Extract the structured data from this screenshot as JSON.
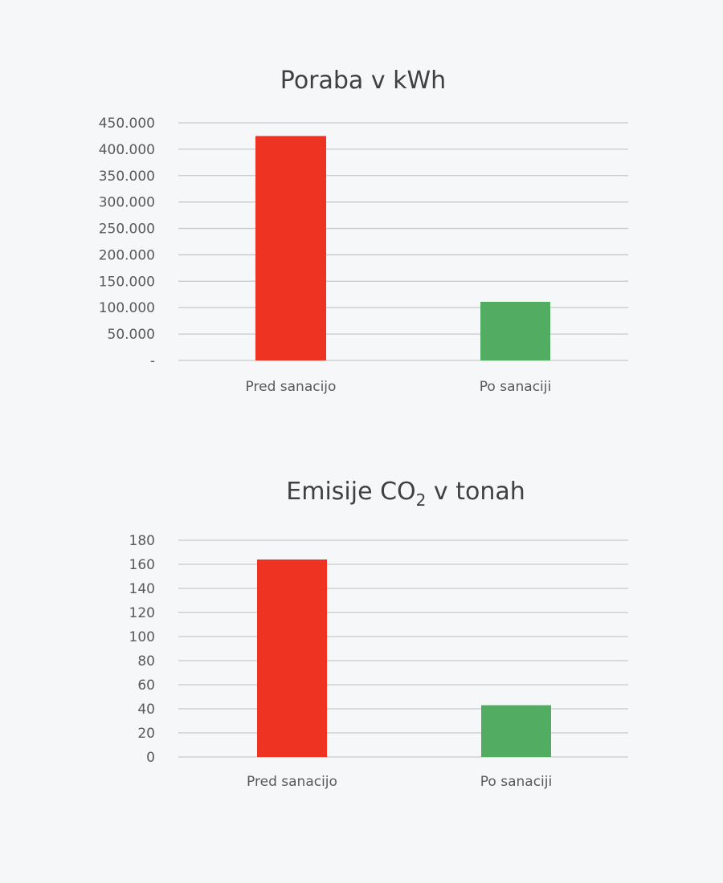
{
  "chart_data": [
    {
      "type": "bar",
      "title": "Poraba v kWh",
      "categories": [
        "Pred sanacijo",
        "Po sanaciji"
      ],
      "values": [
        425000,
        111000
      ],
      "bar_colors": [
        "#ef3322",
        "#52ad62"
      ],
      "ylim": [
        0,
        450000
      ],
      "yticks": [
        0,
        50000,
        100000,
        150000,
        200000,
        250000,
        300000,
        350000,
        400000,
        450000
      ],
      "ytick_labels": [
        "-",
        "50.000",
        "100.000",
        "150.000",
        "200.000",
        "250.000",
        "300.000",
        "350.000",
        "400.000",
        "450.000"
      ],
      "grid": true,
      "xlabel": "",
      "ylabel": ""
    },
    {
      "type": "bar",
      "title": "Emisije CO",
      "title_subscript": "2",
      "title_suffix": " v tonah",
      "categories": [
        "Pred sanacijo",
        "Po sanaciji"
      ],
      "values": [
        164,
        43
      ],
      "bar_colors": [
        "#ef3322",
        "#52ad62"
      ],
      "ylim": [
        0,
        180
      ],
      "yticks": [
        0,
        20,
        40,
        60,
        80,
        100,
        120,
        140,
        160,
        180
      ],
      "ytick_labels": [
        "0",
        "20",
        "40",
        "60",
        "80",
        "100",
        "120",
        "140",
        "160",
        "180"
      ],
      "grid": true,
      "xlabel": "",
      "ylabel": ""
    }
  ],
  "colors": {
    "background": "#f6f7f9",
    "grid": "#c8c8c8",
    "text": "#595959"
  }
}
